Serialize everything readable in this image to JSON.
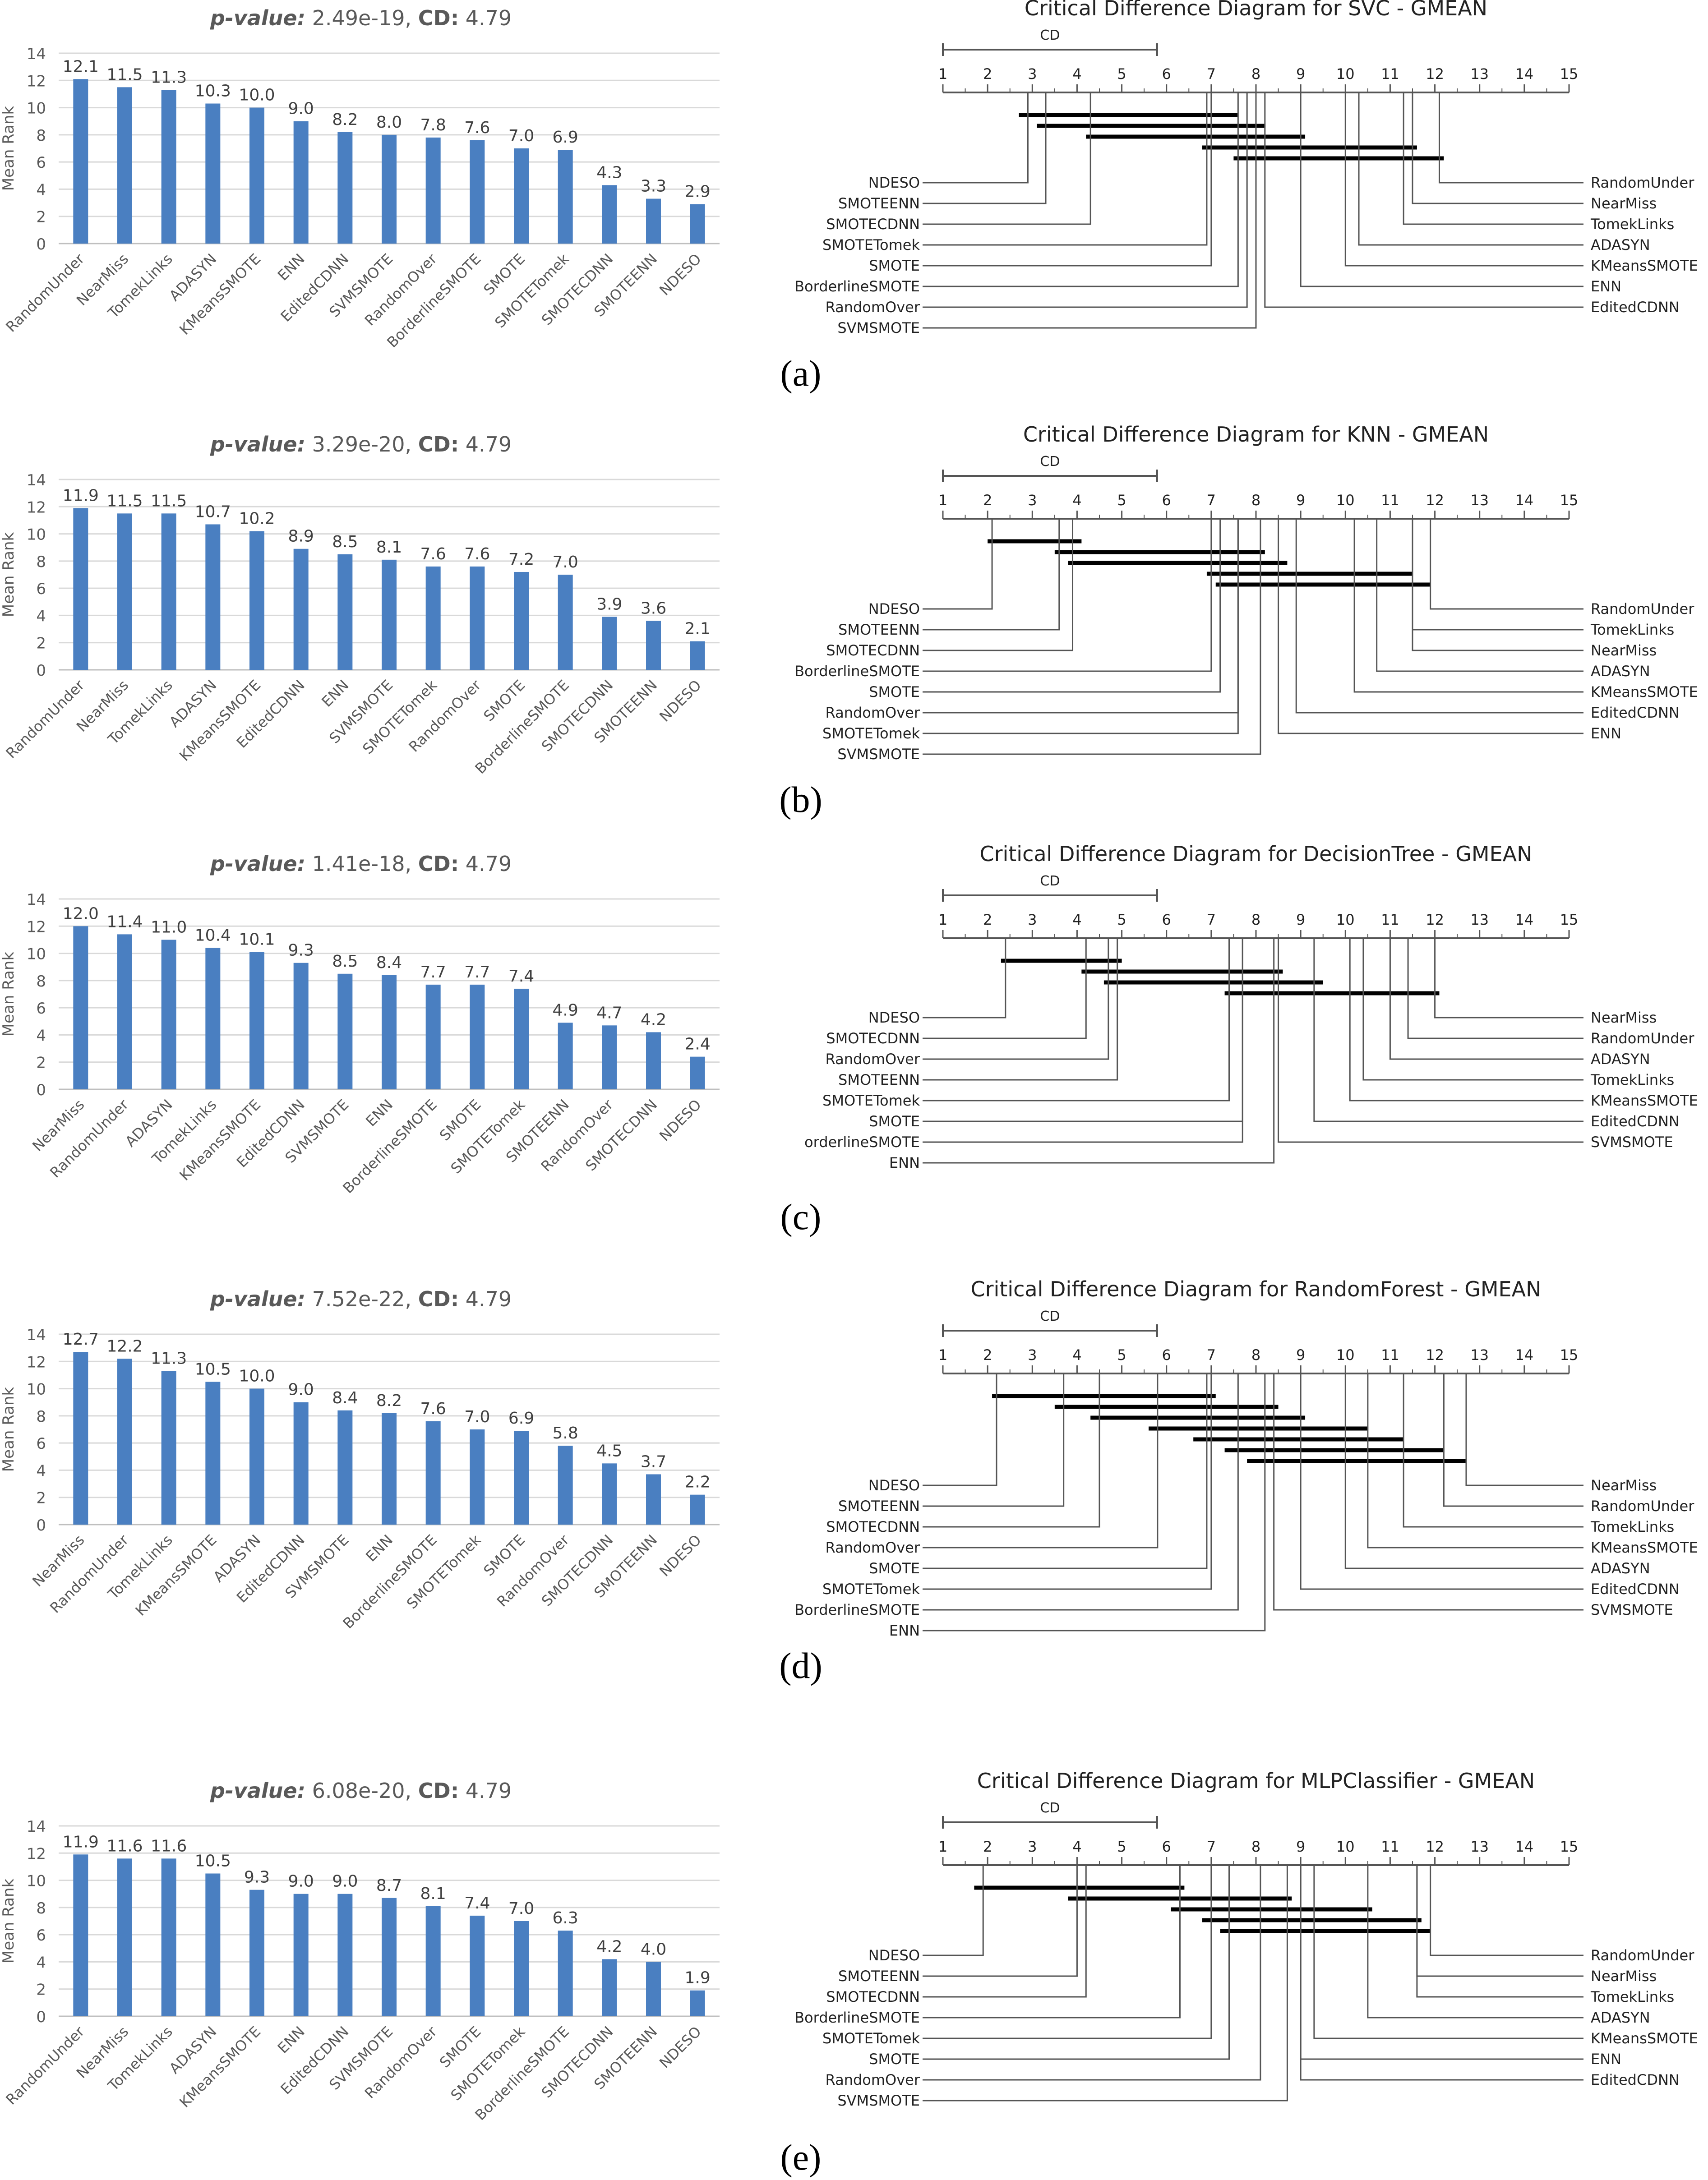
{
  "chart_data": [
    {
      "panel": "(a)",
      "bar": {
        "type": "bar",
        "title_pvalue_label": "p-value:",
        "title_pvalue": "2.49e-19,",
        "title_cd_label": "CD:",
        "title_cd": "4.79",
        "ylabel": "Mean Rank",
        "ylim": [
          0,
          14
        ],
        "yticks": [
          0,
          2,
          4,
          6,
          8,
          10,
          12,
          14
        ],
        "categories": [
          "RandomUnder",
          "NearMiss",
          "TomekLinks",
          "ADASYN",
          "KMeansSMOTE",
          "ENN",
          "EditedCDNN",
          "SVMSMOTE",
          "RandomOver",
          "BorderlineSMOTE",
          "SMOTE",
          "SMOTETomek",
          "SMOTECDNN",
          "SMOTEENN",
          "NDESO"
        ],
        "values": [
          12.1,
          11.5,
          11.3,
          10.3,
          10.0,
          9.0,
          8.2,
          8.0,
          7.8,
          7.6,
          7.0,
          6.9,
          4.3,
          3.3,
          2.9
        ],
        "labels": [
          "12.1",
          "11.5",
          "11.3",
          "10.3",
          "10.0",
          "9.0",
          "8.2",
          "8.0",
          "7.8",
          "7.6",
          "7.0",
          "6.9",
          "4.3",
          "3.3",
          "2.9"
        ]
      },
      "cd": {
        "type": "critical-difference",
        "title": "Critical Difference Diagram for SVC - GMEAN",
        "cd_label": "CD",
        "cd": 4.79,
        "axis_min": 1,
        "axis_max": 15,
        "left": [
          {
            "name": "NDESO",
            "rank": 2.9
          },
          {
            "name": "SMOTEENN",
            "rank": 3.3
          },
          {
            "name": "SMOTECDNN",
            "rank": 4.3
          },
          {
            "name": "SMOTETomek",
            "rank": 6.9
          },
          {
            "name": "SMOTE",
            "rank": 7.0
          },
          {
            "name": "BorderlineSMOTE",
            "rank": 7.6
          },
          {
            "name": "RandomOver",
            "rank": 7.8
          },
          {
            "name": "SVMSMOTE",
            "rank": 8.0
          }
        ],
        "right": [
          {
            "name": "RandomUnder",
            "rank": 12.1
          },
          {
            "name": "NearMiss",
            "rank": 11.5
          },
          {
            "name": "TomekLinks",
            "rank": 11.3
          },
          {
            "name": "ADASYN",
            "rank": 10.3
          },
          {
            "name": "KMeansSMOTE",
            "rank": 10.0
          },
          {
            "name": "ENN",
            "rank": 9.0
          },
          {
            "name": "EditedCDNN",
            "rank": 8.2
          }
        ],
        "cliques": [
          [
            2.7,
            7.6
          ],
          [
            3.1,
            8.2
          ],
          [
            4.2,
            9.1
          ],
          [
            6.8,
            11.6
          ],
          [
            7.5,
            12.2
          ]
        ]
      }
    },
    {
      "panel": "(b)",
      "bar": {
        "type": "bar",
        "title_pvalue_label": "p-value:",
        "title_pvalue": "3.29e-20,",
        "title_cd_label": "CD:",
        "title_cd": "4.79",
        "ylabel": "Mean Rank",
        "ylim": [
          0,
          14
        ],
        "yticks": [
          0,
          2,
          4,
          6,
          8,
          10,
          12,
          14
        ],
        "categories": [
          "RandomUnder",
          "NearMiss",
          "TomekLinks",
          "ADASYN",
          "KMeansSMOTE",
          "EditedCDNN",
          "ENN",
          "SVMSMOTE",
          "SMOTETomek",
          "RandomOver",
          "SMOTE",
          "BorderlineSMOTE",
          "SMOTECDNN",
          "SMOTEENN",
          "NDESO"
        ],
        "values": [
          11.9,
          11.5,
          11.5,
          10.7,
          10.2,
          8.9,
          8.5,
          8.1,
          7.6,
          7.6,
          7.2,
          7.0,
          3.9,
          3.6,
          2.1
        ],
        "labels": [
          "11.9",
          "11.5",
          "11.5",
          "10.7",
          "10.2",
          "8.9",
          "8.5",
          "8.1",
          "7.6",
          "7.6",
          "7.2",
          "7.0",
          "3.9",
          "3.6",
          "2.1"
        ]
      },
      "cd": {
        "type": "critical-difference",
        "title": "Critical Difference Diagram for KNN - GMEAN",
        "cd_label": "CD",
        "cd": 4.79,
        "axis_min": 1,
        "axis_max": 15,
        "left": [
          {
            "name": "NDESO",
            "rank": 2.1
          },
          {
            "name": "SMOTEENN",
            "rank": 3.6
          },
          {
            "name": "SMOTECDNN",
            "rank": 3.9
          },
          {
            "name": "BorderlineSMOTE",
            "rank": 7.0
          },
          {
            "name": "SMOTE",
            "rank": 7.2
          },
          {
            "name": "RandomOver",
            "rank": 7.6
          },
          {
            "name": "SMOTETomek",
            "rank": 7.6
          },
          {
            "name": "SVMSMOTE",
            "rank": 8.1
          }
        ],
        "right": [
          {
            "name": "RandomUnder",
            "rank": 11.9
          },
          {
            "name": "TomekLinks",
            "rank": 11.5
          },
          {
            "name": "NearMiss",
            "rank": 11.5
          },
          {
            "name": "ADASYN",
            "rank": 10.7
          },
          {
            "name": "KMeansSMOTE",
            "rank": 10.2
          },
          {
            "name": "EditedCDNN",
            "rank": 8.9
          },
          {
            "name": "ENN",
            "rank": 8.5
          }
        ],
        "cliques": [
          [
            2.0,
            4.1
          ],
          [
            3.5,
            8.2
          ],
          [
            3.8,
            8.7
          ],
          [
            6.9,
            11.5
          ],
          [
            7.1,
            11.9
          ]
        ]
      }
    },
    {
      "panel": "(c)",
      "bar": {
        "type": "bar",
        "title_pvalue_label": "p-value:",
        "title_pvalue": "1.41e-18,",
        "title_cd_label": "CD:",
        "title_cd": "4.79",
        "ylabel": "Mean Rank",
        "ylim": [
          0,
          14
        ],
        "yticks": [
          0,
          2,
          4,
          6,
          8,
          10,
          12,
          14
        ],
        "categories": [
          "NearMiss",
          "RandomUnder",
          "ADASYN",
          "TomekLinks",
          "KMeansSMOTE",
          "EditedCDNN",
          "SVMSMOTE",
          "ENN",
          "BorderlineSMOTE",
          "SMOTE",
          "SMOTETomek",
          "SMOTEENN",
          "RandomOver",
          "SMOTECDNN",
          "NDESO"
        ],
        "values": [
          12.0,
          11.4,
          11.0,
          10.4,
          10.1,
          9.3,
          8.5,
          8.4,
          7.7,
          7.7,
          7.4,
          4.9,
          4.7,
          4.2,
          2.4
        ],
        "labels": [
          "12.0",
          "11.4",
          "11.0",
          "10.4",
          "10.1",
          "9.3",
          "8.5",
          "8.4",
          "7.7",
          "7.7",
          "7.4",
          "4.9",
          "4.7",
          "4.2",
          "2.4"
        ]
      },
      "cd": {
        "type": "critical-difference",
        "title": "Critical Difference Diagram for DecisionTree - GMEAN",
        "cd_label": "CD",
        "cd": 4.79,
        "axis_min": 1,
        "axis_max": 15,
        "left": [
          {
            "name": "NDESO",
            "rank": 2.4
          },
          {
            "name": "SMOTECDNN",
            "rank": 4.2
          },
          {
            "name": "RandomOver",
            "rank": 4.7
          },
          {
            "name": "SMOTEENN",
            "rank": 4.9
          },
          {
            "name": "SMOTETomek",
            "rank": 7.4
          },
          {
            "name": "SMOTE",
            "rank": 7.7
          },
          {
            "name": "orderlineSMOTE",
            "rank": 7.7
          },
          {
            "name": "ENN",
            "rank": 8.4
          }
        ],
        "right": [
          {
            "name": "NearMiss",
            "rank": 12.0
          },
          {
            "name": "RandomUnder",
            "rank": 11.4
          },
          {
            "name": "ADASYN",
            "rank": 11.0
          },
          {
            "name": "TomekLinks",
            "rank": 10.4
          },
          {
            "name": "KMeansSMOTE",
            "rank": 10.1
          },
          {
            "name": "EditedCDNN",
            "rank": 9.3
          },
          {
            "name": "SVMSMOTE",
            "rank": 8.5
          }
        ],
        "cliques": [
          [
            2.3,
            5.0
          ],
          [
            4.1,
            8.6
          ],
          [
            4.6,
            9.5
          ],
          [
            7.3,
            12.1
          ]
        ]
      }
    },
    {
      "panel": "(d)",
      "bar": {
        "type": "bar",
        "title_pvalue_label": "p-value:",
        "title_pvalue": "7.52e-22,",
        "title_cd_label": "CD:",
        "title_cd": "4.79",
        "ylabel": "Mean Rank",
        "ylim": [
          0,
          14
        ],
        "yticks": [
          0,
          2,
          4,
          6,
          8,
          10,
          12,
          14
        ],
        "categories": [
          "NearMiss",
          "RandomUnder",
          "TomekLinks",
          "KMeansSMOTE",
          "ADASYN",
          "EditedCDNN",
          "SVMSMOTE",
          "ENN",
          "BorderlineSMOTE",
          "SMOTETomek",
          "SMOTE",
          "RandomOver",
          "SMOTECDNN",
          "SMOTEENN",
          "NDESO"
        ],
        "values": [
          12.7,
          12.2,
          11.3,
          10.5,
          10.0,
          9.0,
          8.4,
          8.2,
          7.6,
          7.0,
          6.9,
          5.8,
          4.5,
          3.7,
          2.2
        ],
        "labels": [
          "12.7",
          "12.2",
          "11.3",
          "10.5",
          "10.0",
          "9.0",
          "8.4",
          "8.2",
          "7.6",
          "7.0",
          "6.9",
          "5.8",
          "4.5",
          "3.7",
          "2.2"
        ]
      },
      "cd": {
        "type": "critical-difference",
        "title": "Critical Difference Diagram for RandomForest - GMEAN",
        "cd_label": "CD",
        "cd": 4.79,
        "axis_min": 1,
        "axis_max": 15,
        "left": [
          {
            "name": "NDESO",
            "rank": 2.2
          },
          {
            "name": "SMOTEENN",
            "rank": 3.7
          },
          {
            "name": "SMOTECDNN",
            "rank": 4.5
          },
          {
            "name": "RandomOver",
            "rank": 5.8
          },
          {
            "name": "SMOTE",
            "rank": 6.9
          },
          {
            "name": "SMOTETomek",
            "rank": 7.0
          },
          {
            "name": "BorderlineSMOTE",
            "rank": 7.6
          },
          {
            "name": "ENN",
            "rank": 8.2
          }
        ],
        "right": [
          {
            "name": "NearMiss",
            "rank": 12.7
          },
          {
            "name": "RandomUnder",
            "rank": 12.2
          },
          {
            "name": "TomekLinks",
            "rank": 11.3
          },
          {
            "name": "KMeansSMOTE",
            "rank": 10.5
          },
          {
            "name": "ADASYN",
            "rank": 10.0
          },
          {
            "name": "EditedCDNN",
            "rank": 9.0
          },
          {
            "name": "SVMSMOTE",
            "rank": 8.4
          }
        ],
        "cliques": [
          [
            2.1,
            7.1
          ],
          [
            3.5,
            8.5
          ],
          [
            4.3,
            9.1
          ],
          [
            5.6,
            10.5
          ],
          [
            6.6,
            11.3
          ],
          [
            7.3,
            12.2
          ],
          [
            7.8,
            12.7
          ]
        ]
      }
    },
    {
      "panel": "(e)",
      "bar": {
        "type": "bar",
        "title_pvalue_label": "p-value:",
        "title_pvalue": "6.08e-20,",
        "title_cd_label": "CD:",
        "title_cd": "4.79",
        "ylabel": "Mean Rank",
        "ylim": [
          0,
          14
        ],
        "yticks": [
          0,
          2,
          4,
          6,
          8,
          10,
          12,
          14
        ],
        "categories": [
          "RandomUnder",
          "NearMiss",
          "TomekLinks",
          "ADASYN",
          "KMeansSMOTE",
          "ENN",
          "EditedCDNN",
          "SVMSMOTE",
          "RandomOver",
          "SMOTE",
          "SMOTETomek",
          "BorderlineSMOTE",
          "SMOTECDNN",
          "SMOTEENN",
          "NDESO"
        ],
        "values": [
          11.9,
          11.6,
          11.6,
          10.5,
          9.3,
          9.0,
          9.0,
          8.7,
          8.1,
          7.4,
          7.0,
          6.3,
          4.2,
          4.0,
          1.9
        ],
        "labels": [
          "11.9",
          "11.6",
          "11.6",
          "10.5",
          "9.3",
          "9.0",
          "9.0",
          "8.7",
          "8.1",
          "7.4",
          "7.0",
          "6.3",
          "4.2",
          "4.0",
          "1.9"
        ]
      },
      "cd": {
        "type": "critical-difference",
        "title": "Critical Difference Diagram for MLPClassifier - GMEAN",
        "cd_label": "CD",
        "cd": 4.79,
        "axis_min": 1,
        "axis_max": 15,
        "left": [
          {
            "name": "NDESO",
            "rank": 1.9
          },
          {
            "name": "SMOTEENN",
            "rank": 4.0
          },
          {
            "name": "SMOTECDNN",
            "rank": 4.2
          },
          {
            "name": "BorderlineSMOTE",
            "rank": 6.3
          },
          {
            "name": "SMOTETomek",
            "rank": 7.0
          },
          {
            "name": "SMOTE",
            "rank": 7.4
          },
          {
            "name": "RandomOver",
            "rank": 8.1
          },
          {
            "name": "SVMSMOTE",
            "rank": 8.7
          }
        ],
        "right": [
          {
            "name": "RandomUnder",
            "rank": 11.9
          },
          {
            "name": "NearMiss",
            "rank": 11.6
          },
          {
            "name": "TomekLinks",
            "rank": 11.6
          },
          {
            "name": "ADASYN",
            "rank": 10.5
          },
          {
            "name": "KMeansSMOTE",
            "rank": 9.3
          },
          {
            "name": "ENN",
            "rank": 9.0
          },
          {
            "name": "EditedCDNN",
            "rank": 9.0
          }
        ],
        "cliques": [
          [
            1.7,
            6.4
          ],
          [
            3.8,
            8.8
          ],
          [
            6.1,
            10.6
          ],
          [
            6.8,
            11.7
          ],
          [
            7.2,
            11.9
          ]
        ]
      }
    }
  ],
  "colors": {
    "bar": "#4a7fc1",
    "grid": "#d9d9d9",
    "axis_text": "#595959",
    "title_text": "#595959",
    "cd_line": "#555555",
    "clique": "#000000"
  }
}
